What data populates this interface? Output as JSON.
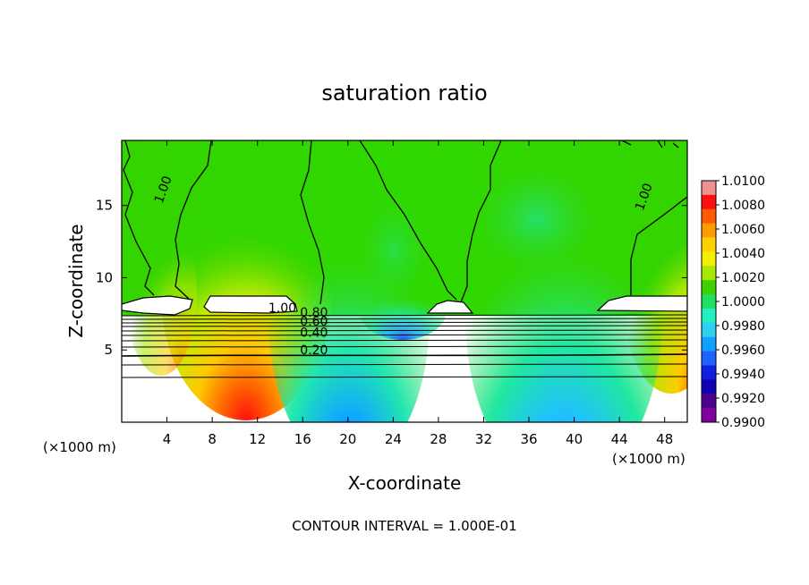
{
  "chart_data": {
    "type": "heatmap",
    "title": "saturation ratio",
    "xlabel": "X-coordinate",
    "ylabel": "Z-coordinate",
    "x_unit": "(×1000 m)",
    "footer": "CONTOUR INTERVAL = 1.000E-01",
    "xlim": [
      0,
      50
    ],
    "ylim": [
      0,
      19.5
    ],
    "x_ticks": [
      4,
      8,
      12,
      16,
      20,
      24,
      28,
      32,
      36,
      40,
      44,
      48
    ],
    "y_ticks": [
      5,
      10,
      15
    ],
    "colorbar": {
      "range": [
        0.99,
        1.01
      ],
      "labels": [
        "1.0100",
        "1.0080",
        "1.0060",
        "1.0040",
        "1.0020",
        "1.0000",
        "0.9980",
        "0.9960",
        "0.9940",
        "0.9920",
        "0.9900"
      ],
      "colors": [
        "#f09090",
        "#ff1010",
        "#ff5a00",
        "#ff9a00",
        "#ffd000",
        "#f0f000",
        "#a8e800",
        "#40d000",
        "#20e060",
        "#20f0c0",
        "#30d0f0",
        "#10a0ff",
        "#2060ff",
        "#1020e0",
        "#1000b0",
        "#500090",
        "#8000a0"
      ]
    },
    "contour_labels": [
      {
        "text": "1.00",
        "x": 4.0,
        "z": 16.0
      },
      {
        "text": "1.00",
        "x": 46.5,
        "z": 15.5
      },
      {
        "text": "1.00",
        "x": 14.2,
        "z": 7.6
      },
      {
        "text": "0.80",
        "x": 17.0,
        "z": 7.3
      },
      {
        "text": "0.60",
        "x": 17.0,
        "z": 6.7
      },
      {
        "text": "0.40",
        "x": 17.0,
        "z": 5.9
      },
      {
        "text": "0.20",
        "x": 17.0,
        "z": 4.7
      }
    ]
  }
}
